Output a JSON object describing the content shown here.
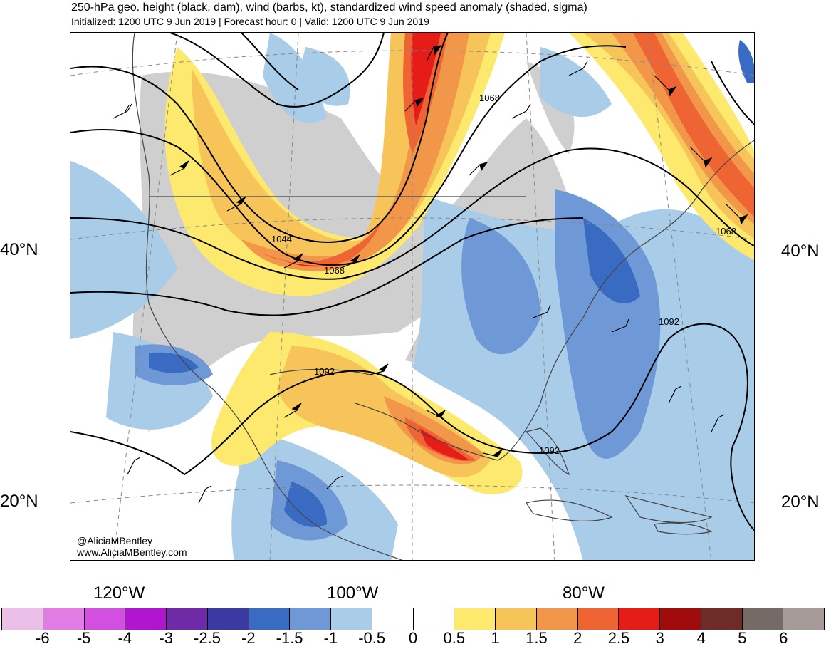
{
  "header": {
    "title": "250-hPa geo. height (black, dam), wind (barbs, kt), standardized wind speed anomaly (shaded, sigma)",
    "subtitle": "Initialized: 1200 UTC 9 Jun 2019 | Forecast hour: 0 | Valid: 1200 UTC 9 Jun 2019"
  },
  "axes": {
    "lat_left": [
      "40°N",
      "20°N"
    ],
    "lat_right": [
      "40°N",
      "20°N"
    ],
    "lon": [
      "120°W",
      "100°W",
      "80°W"
    ]
  },
  "contour_labels": [
    "1068",
    "1044",
    "1068",
    "1092",
    "1092",
    "1092",
    "1068"
  ],
  "credit": {
    "handle": "@AliciaMBentley",
    "site": "www.AliciaMBentley.com"
  },
  "colorbar": {
    "ticks": [
      "-6",
      "-5",
      "-4",
      "-3",
      "-2.5",
      "-2",
      "-1.5",
      "-1",
      "-0.5",
      "0",
      "0.5",
      "1",
      "1.5",
      "2",
      "2.5",
      "3",
      "4",
      "5",
      "6"
    ],
    "colors": [
      "#ebbfe8",
      "#e27de6",
      "#d24fe0",
      "#b015cf",
      "#6f2aa8",
      "#3b3aa3",
      "#3a6bc2",
      "#6f99d6",
      "#a9cce9",
      "#ffffff",
      "#ffffff",
      "#fde96d",
      "#f6c459",
      "#f2974a",
      "#ef6433",
      "#e51c17",
      "#9f0c0b",
      "#6f2b27",
      "#766a66",
      "#a69b98"
    ]
  },
  "colors": {
    "neutral_shade": "#cfcfcf",
    "height_contour": "#000000",
    "border": "#444444"
  }
}
